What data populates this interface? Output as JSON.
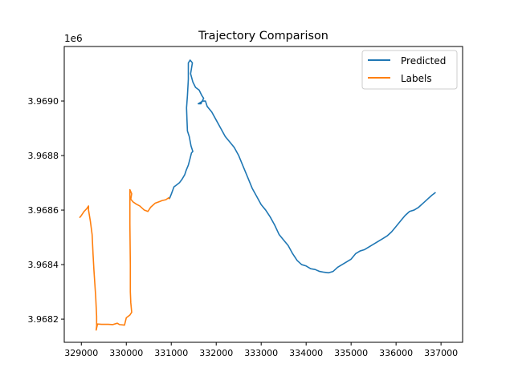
{
  "chart_data": {
    "type": "line",
    "title": "Trajectory Comparison",
    "xlabel": "",
    "ylabel": "",
    "y_offset_label": "1e6",
    "xlim": [
      328620,
      337480
    ],
    "ylim": [
      3968115,
      3969200
    ],
    "x_ticks": [
      329000,
      330000,
      331000,
      332000,
      333000,
      334000,
      335000,
      336000,
      337000
    ],
    "x_tick_labels": [
      "329000",
      "330000",
      "331000",
      "332000",
      "333000",
      "334000",
      "335000",
      "336000",
      "337000"
    ],
    "y_ticks": [
      3968200,
      3968400,
      3968600,
      3968800,
      3969000
    ],
    "y_tick_labels": [
      "3.9682",
      "3.9684",
      "3.9686",
      "3.9688",
      "3.9690"
    ],
    "grid": false,
    "legend_position": "top-right",
    "series": [
      {
        "name": "Predicted",
        "color": "#1f77b4",
        "points": [
          [
            330960,
            3968642
          ],
          [
            331000,
            3968658
          ],
          [
            331060,
            3968685
          ],
          [
            331100,
            3968690
          ],
          [
            331180,
            3968700
          ],
          [
            331240,
            3968713
          ],
          [
            331300,
            3968730
          ],
          [
            331330,
            3968745
          ],
          [
            331380,
            3968765
          ],
          [
            331420,
            3968790
          ],
          [
            331450,
            3968810
          ],
          [
            331480,
            3968815
          ],
          [
            331440,
            3968835
          ],
          [
            331400,
            3968870
          ],
          [
            331360,
            3968890
          ],
          [
            331350,
            3968930
          ],
          [
            331340,
            3968975
          ],
          [
            331360,
            3969020
          ],
          [
            331380,
            3969080
          ],
          [
            331380,
            3969140
          ],
          [
            331420,
            3969150
          ],
          [
            331470,
            3969140
          ],
          [
            331430,
            3969100
          ],
          [
            331480,
            3969070
          ],
          [
            331540,
            3969050
          ],
          [
            331620,
            3969040
          ],
          [
            331680,
            3969020
          ],
          [
            331720,
            3969010
          ],
          [
            331660,
            3968990
          ],
          [
            331600,
            3968990
          ],
          [
            331700,
            3969000
          ],
          [
            331760,
            3969000
          ],
          [
            331800,
            3968980
          ],
          [
            331900,
            3968960
          ],
          [
            332000,
            3968930
          ],
          [
            332100,
            3968900
          ],
          [
            332200,
            3968870
          ],
          [
            332300,
            3968850
          ],
          [
            332400,
            3968830
          ],
          [
            332500,
            3968800
          ],
          [
            332600,
            3968760
          ],
          [
            332700,
            3968720
          ],
          [
            332800,
            3968680
          ],
          [
            332900,
            3968650
          ],
          [
            333000,
            3968620
          ],
          [
            333100,
            3968600
          ],
          [
            333200,
            3968575
          ],
          [
            333300,
            3968545
          ],
          [
            333400,
            3968510
          ],
          [
            333500,
            3968490
          ],
          [
            333600,
            3968470
          ],
          [
            333700,
            3968440
          ],
          [
            333800,
            3968415
          ],
          [
            333900,
            3968400
          ],
          [
            334000,
            3968395
          ],
          [
            334100,
            3968385
          ],
          [
            334200,
            3968382
          ],
          [
            334300,
            3968375
          ],
          [
            334400,
            3968372
          ],
          [
            334500,
            3968370
          ],
          [
            334600,
            3968375
          ],
          [
            334700,
            3968390
          ],
          [
            334800,
            3968400
          ],
          [
            334900,
            3968410
          ],
          [
            335000,
            3968420
          ],
          [
            335100,
            3968440
          ],
          [
            335200,
            3968450
          ],
          [
            335300,
            3968455
          ],
          [
            335400,
            3968465
          ],
          [
            335500,
            3968475
          ],
          [
            335600,
            3968485
          ],
          [
            335700,
            3968495
          ],
          [
            335800,
            3968505
          ],
          [
            335900,
            3968520
          ],
          [
            336000,
            3968540
          ],
          [
            336100,
            3968560
          ],
          [
            336200,
            3968580
          ],
          [
            336300,
            3968595
          ],
          [
            336400,
            3968600
          ],
          [
            336500,
            3968610
          ],
          [
            336600,
            3968625
          ],
          [
            336700,
            3968640
          ],
          [
            336800,
            3968655
          ],
          [
            336880,
            3968665
          ]
        ]
      },
      {
        "name": "Labels",
        "color": "#ff7f0e",
        "points": [
          [
            328960,
            3968572
          ],
          [
            329000,
            3968580
          ],
          [
            329060,
            3968595
          ],
          [
            329120,
            3968605
          ],
          [
            329160,
            3968615
          ],
          [
            329160,
            3968600
          ],
          [
            329200,
            3968560
          ],
          [
            329240,
            3968510
          ],
          [
            329260,
            3968440
          ],
          [
            329280,
            3968380
          ],
          [
            329300,
            3968330
          ],
          [
            329320,
            3968280
          ],
          [
            329340,
            3968210
          ],
          [
            329340,
            3968175
          ],
          [
            329330,
            3968160
          ],
          [
            329360,
            3968182
          ],
          [
            329450,
            3968181
          ],
          [
            329600,
            3968181
          ],
          [
            329700,
            3968180
          ],
          [
            329800,
            3968185
          ],
          [
            329850,
            3968180
          ],
          [
            329960,
            3968178
          ],
          [
            330000,
            3968205
          ],
          [
            330080,
            3968215
          ],
          [
            330120,
            3968225
          ],
          [
            330100,
            3968260
          ],
          [
            330090,
            3968300
          ],
          [
            330090,
            3968400
          ],
          [
            330080,
            3968550
          ],
          [
            330080,
            3968675
          ],
          [
            330120,
            3968660
          ],
          [
            330100,
            3968640
          ],
          [
            330150,
            3968630
          ],
          [
            330220,
            3968622
          ],
          [
            330300,
            3968615
          ],
          [
            330400,
            3968600
          ],
          [
            330480,
            3968595
          ],
          [
            330540,
            3968610
          ],
          [
            330640,
            3968625
          ],
          [
            330720,
            3968630
          ],
          [
            330800,
            3968635
          ],
          [
            330880,
            3968638
          ],
          [
            330940,
            3968645
          ],
          [
            330960,
            3968640
          ]
        ]
      }
    ]
  }
}
